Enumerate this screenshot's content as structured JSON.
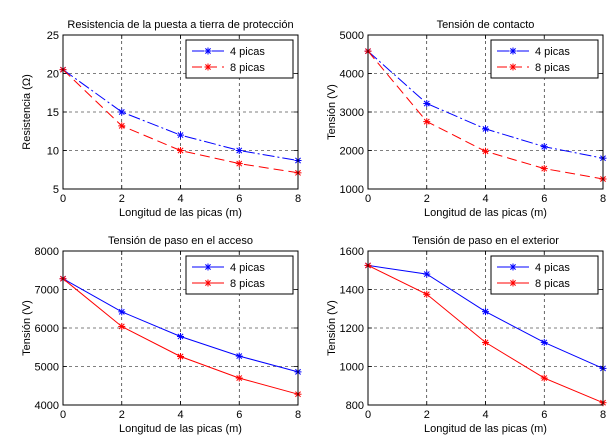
{
  "chart_data": [
    {
      "type": "line",
      "title": "Resistencia de la puesta a tierra de protección",
      "xlabel": "Longitud de las picas (m)",
      "ylabel": "Resistencia (Ω)",
      "x": [
        0,
        2,
        4,
        6,
        8
      ],
      "xlim": [
        0,
        8
      ],
      "ylim": [
        5,
        25
      ],
      "xticks": [
        0,
        2,
        4,
        6,
        8
      ],
      "yticks": [
        5,
        10,
        15,
        20,
        25
      ],
      "grid": true,
      "legend": "top-right",
      "series": [
        {
          "name": "4 picas",
          "color": "#0000ff",
          "marker": "asterisk",
          "dash": "dashdot",
          "values": [
            20.5,
            15.0,
            12.0,
            10.0,
            8.7
          ]
        },
        {
          "name": "8 picas",
          "color": "#ff0000",
          "marker": "asterisk",
          "dash": "dashed",
          "values": [
            20.5,
            13.2,
            10.0,
            8.3,
            7.1
          ]
        }
      ]
    },
    {
      "type": "line",
      "title": "Tensión de contacto",
      "xlabel": "Longitud de las picas (m)",
      "ylabel": "Tensión (V)",
      "x": [
        0,
        2,
        4,
        6,
        8
      ],
      "xlim": [
        0,
        8
      ],
      "ylim": [
        1000,
        5000
      ],
      "xticks": [
        0,
        2,
        4,
        6,
        8
      ],
      "yticks": [
        1000,
        2000,
        3000,
        4000,
        5000
      ],
      "grid": true,
      "legend": "top-right",
      "series": [
        {
          "name": "4 picas",
          "color": "#0000ff",
          "marker": "asterisk",
          "dash": "dashdot",
          "values": [
            4580,
            3220,
            2560,
            2100,
            1800
          ]
        },
        {
          "name": "8 picas",
          "color": "#ff0000",
          "marker": "asterisk",
          "dash": "dashed",
          "values": [
            4580,
            2750,
            1980,
            1530,
            1260
          ]
        }
      ]
    },
    {
      "type": "line",
      "title": "Tensión de paso en el acceso",
      "xlabel": "Longitud de las picas (m)",
      "ylabel": "Tensión (V)",
      "x": [
        0,
        2,
        4,
        6,
        8
      ],
      "xlim": [
        0,
        8
      ],
      "ylim": [
        4000,
        8000
      ],
      "xticks": [
        0,
        2,
        4,
        6,
        8
      ],
      "yticks": [
        4000,
        5000,
        6000,
        7000,
        8000
      ],
      "grid": true,
      "legend": "top-right",
      "series": [
        {
          "name": "4 picas",
          "color": "#0000ff",
          "marker": "asterisk",
          "dash": "solid",
          "values": [
            7280,
            6420,
            5780,
            5270,
            4860
          ]
        },
        {
          "name": "8 picas",
          "color": "#ff0000",
          "marker": "asterisk",
          "dash": "solid",
          "values": [
            7280,
            6040,
            5260,
            4700,
            4280
          ]
        }
      ]
    },
    {
      "type": "line",
      "title": "Tensión de paso en el exterior",
      "xlabel": "Longitud de las picas (m)",
      "ylabel": "Tensión (V)",
      "x": [
        0,
        2,
        4,
        6,
        8
      ],
      "xlim": [
        0,
        8
      ],
      "ylim": [
        800,
        1600
      ],
      "xticks": [
        0,
        2,
        4,
        6,
        8
      ],
      "yticks": [
        800,
        1000,
        1200,
        1400,
        1600
      ],
      "grid": true,
      "legend": "top-right",
      "series": [
        {
          "name": "4 picas",
          "color": "#0000ff",
          "marker": "asterisk",
          "dash": "solid",
          "values": [
            1525,
            1480,
            1285,
            1125,
            990
          ]
        },
        {
          "name": "8 picas",
          "color": "#ff0000",
          "marker": "asterisk",
          "dash": "solid",
          "values": [
            1525,
            1375,
            1125,
            940,
            812
          ]
        }
      ]
    }
  ]
}
